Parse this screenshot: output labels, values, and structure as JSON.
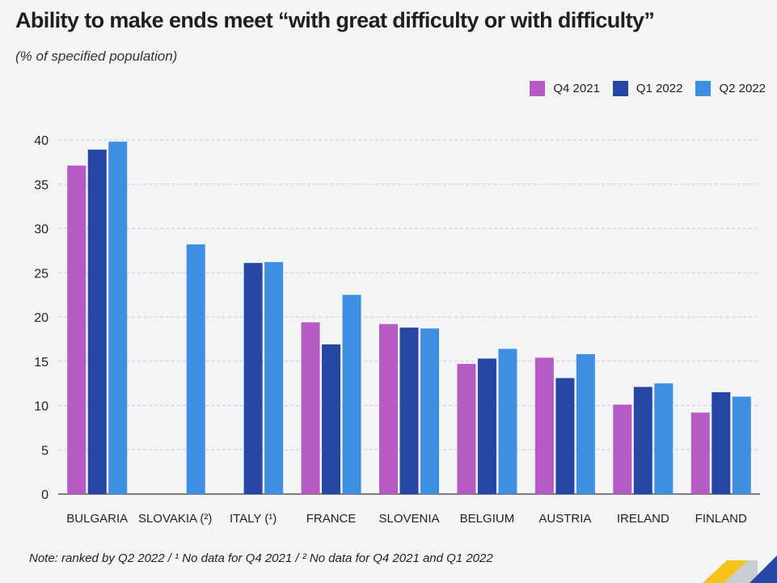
{
  "header": {
    "title": "Ability to make ends meet “with great difficulty or with difficulty”",
    "subtitle": "(% of specified population)"
  },
  "footer": {
    "note": "Note: ranked by Q2 2022 / ¹ No data for Q4 2021 / ² No data for Q4 2021 and Q1 2022"
  },
  "chart_data": {
    "type": "bar",
    "title": "Ability to make ends meet “with great difficulty or with difficulty”",
    "subtitle": "(% of specified population)",
    "categories": [
      "BULGARIA",
      "SLOVAKIA (²)",
      "ITALY (¹)",
      "FRANCE",
      "SLOVENIA",
      "BELGIUM",
      "AUSTRIA",
      "IRELAND",
      "FINLAND"
    ],
    "series": [
      {
        "name": "Q4 2021",
        "color": "#b55bc3",
        "values": [
          37.1,
          null,
          null,
          19.4,
          19.2,
          14.7,
          15.4,
          10.1,
          9.2
        ]
      },
      {
        "name": "Q1 2022",
        "color": "#2646a6",
        "values": [
          38.9,
          null,
          26.1,
          16.9,
          18.8,
          15.3,
          13.1,
          12.1,
          11.5
        ]
      },
      {
        "name": "Q2 2022",
        "color": "#3e8fe2",
        "values": [
          39.8,
          28.2,
          26.2,
          22.5,
          18.7,
          16.4,
          15.8,
          12.5,
          11.0
        ]
      }
    ],
    "ylim": [
      0,
      40
    ],
    "yticks": [
      0,
      5,
      10,
      15,
      20,
      25,
      30,
      35,
      40
    ],
    "grid": true,
    "legend_position": "top-right"
  }
}
